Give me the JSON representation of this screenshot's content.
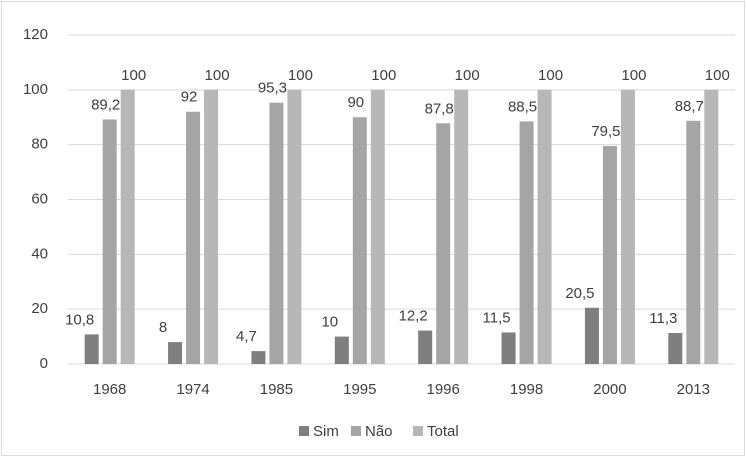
{
  "chart_data": {
    "type": "bar",
    "categories": [
      "1968",
      "1974",
      "1985",
      "1995",
      "1996",
      "1998",
      "2000",
      "2013"
    ],
    "series": [
      {
        "name": "Sim",
        "color": "#7f7f7f",
        "values": [
          10.8,
          8,
          4.7,
          10,
          12.2,
          11.5,
          20.5,
          11.3
        ],
        "value_labels": [
          "10,8",
          "8",
          "4,7",
          "10",
          "12,2",
          "11,5",
          "20,5",
          "11,3"
        ]
      },
      {
        "name": "Não",
        "color": "#a5a5a5",
        "values": [
          89.2,
          92,
          95.3,
          90,
          87.8,
          88.5,
          79.5,
          88.7
        ],
        "value_labels": [
          "89,2",
          "92",
          "95,3",
          "90",
          "87,8",
          "88,5",
          "79,5",
          "88,7"
        ]
      },
      {
        "name": "Total",
        "color": "#b7b7b7",
        "values": [
          100,
          100,
          100,
          100,
          100,
          100,
          100,
          100
        ],
        "value_labels": [
          "100",
          "100",
          "100",
          "100",
          "100",
          "100",
          "100",
          "100"
        ]
      }
    ],
    "ylim": [
      0,
      120
    ],
    "yticks": [
      0,
      20,
      40,
      60,
      80,
      100,
      120
    ],
    "grid": true,
    "legend": "bottom"
  }
}
